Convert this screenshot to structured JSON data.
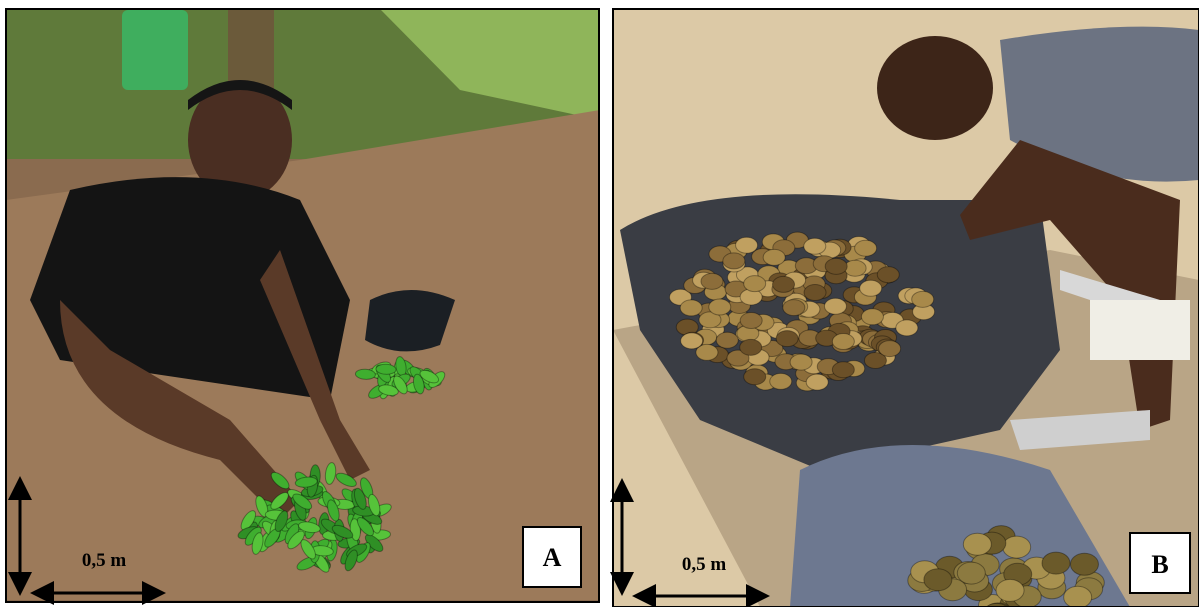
{
  "panels": [
    {
      "label": "A",
      "scale": "0,5 m"
    },
    {
      "label": "B",
      "scale": "0,5 m"
    }
  ]
}
